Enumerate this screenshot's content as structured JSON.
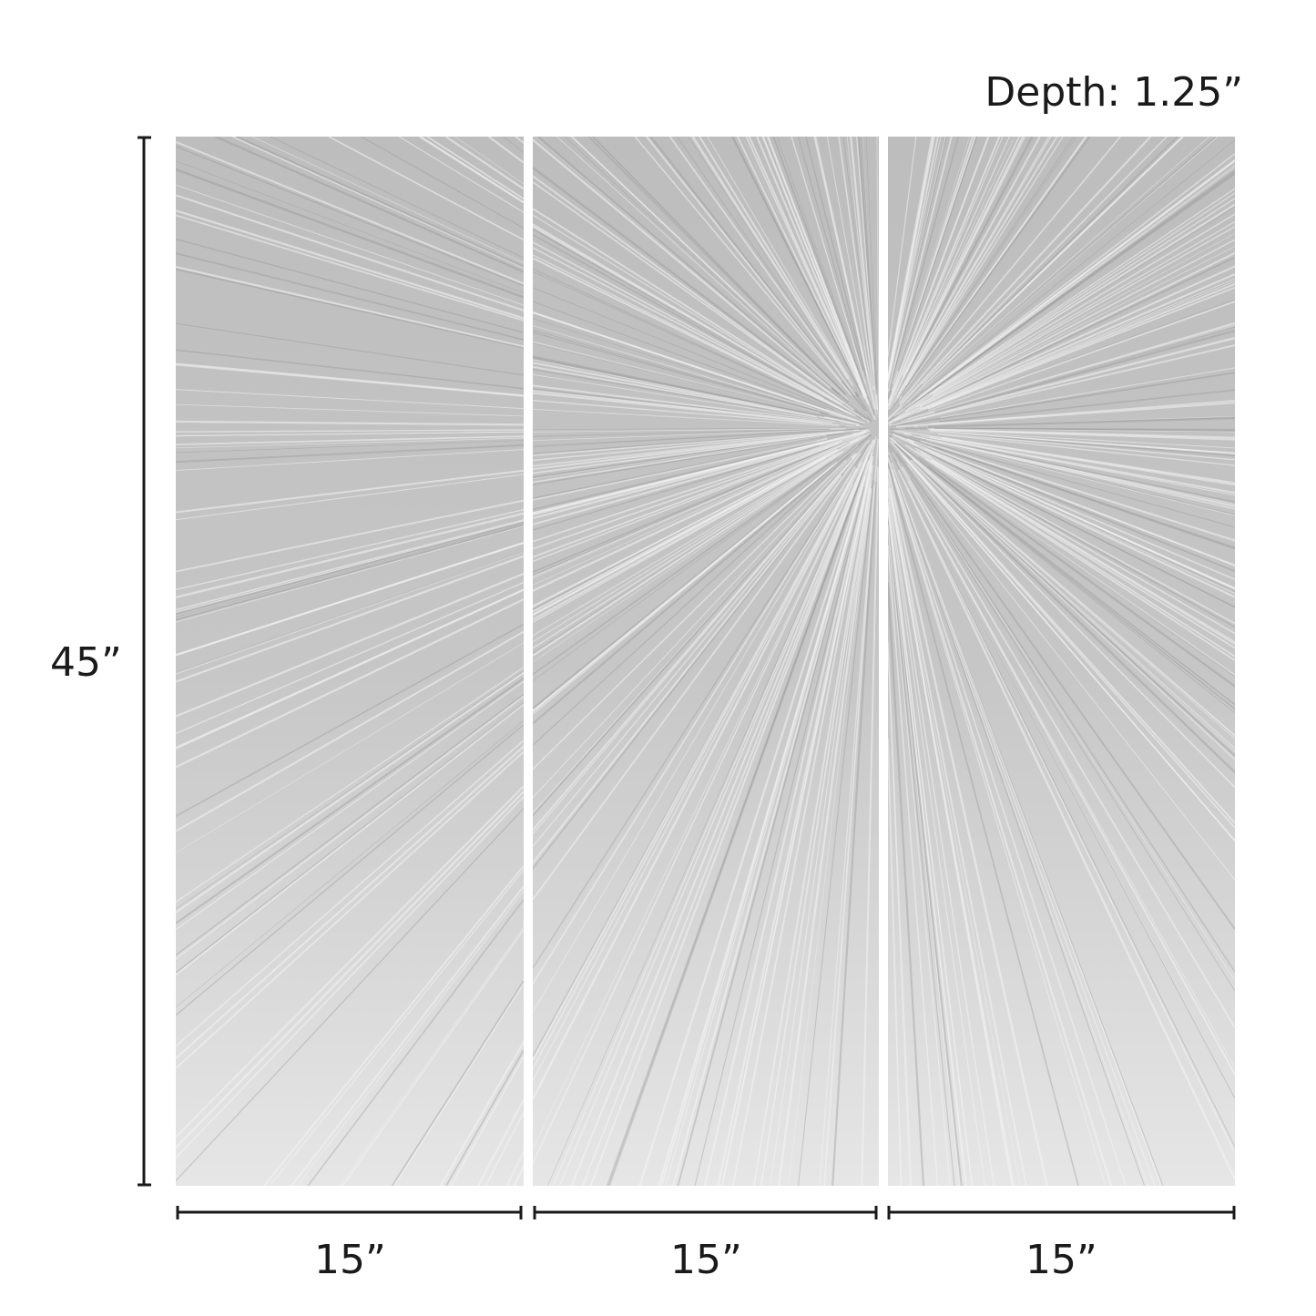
{
  "depth_label": "Depth: 1.25”",
  "height_label": "45”",
  "panels": [
    {
      "width_label": "15”"
    },
    {
      "width_label": "15”"
    },
    {
      "width_label": "15”"
    }
  ],
  "colors": {
    "panel_base": "#c9c9c9",
    "streak_light": "#f4f4f4",
    "streak_dark": "#8e8e8e",
    "dimension_line": "#1a1a1a"
  }
}
